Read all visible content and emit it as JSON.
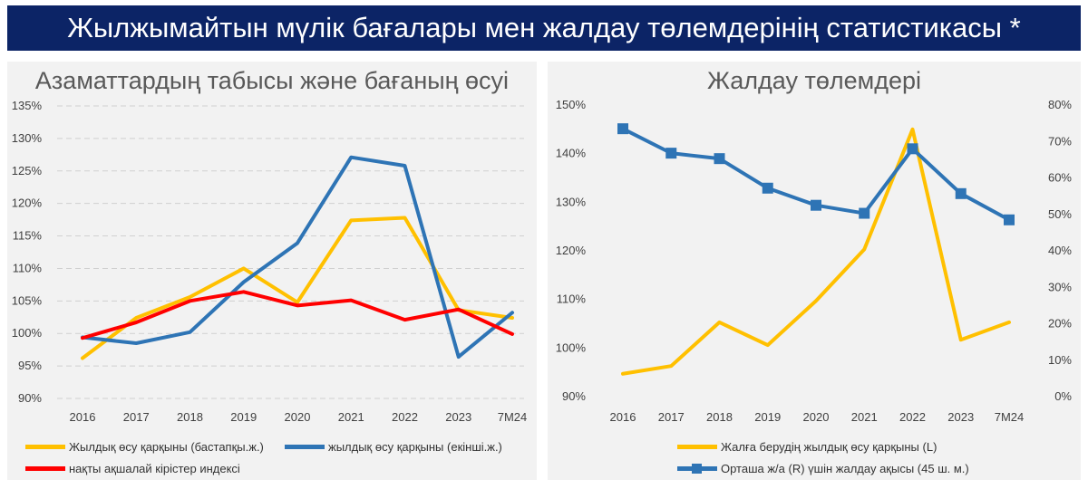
{
  "header": {
    "title": "Жылжымайтын мүлік бағалары мен жалдау төлемдерінің статистикасы *"
  },
  "colors": {
    "banner": "#0c2466",
    "yellow": "#ffc000",
    "blue": "#2e74b5",
    "red": "#ff0000"
  },
  "chart_data": [
    {
      "type": "line",
      "title": "Азаматтардың  табысы және бағаның өсуі",
      "categories": [
        "2016",
        "2017",
        "2018",
        "2019",
        "2020",
        "2021",
        "2022",
        "2023",
        "7M24"
      ],
      "y_ticks": [
        "90%",
        "95%",
        "100%",
        "105%",
        "110%",
        "115%",
        "120%",
        "125%",
        "130%",
        "135%"
      ],
      "ylim": [
        90,
        135
      ],
      "grid": true,
      "legend_position": "bottom",
      "series": [
        {
          "name": "Жылдық өсу қарқыны (бастапқы.ж.)",
          "color": "#ffc000",
          "values": [
            96.2,
            102.4,
            105.6,
            110.0,
            104.8,
            117.4,
            117.8,
            103.6,
            102.4
          ]
        },
        {
          "name": "жылдық өсу қарқыны (екінші.ж.)",
          "color": "#2e74b5",
          "values": [
            99.4,
            98.5,
            100.2,
            107.9,
            113.9,
            127.1,
            125.8,
            96.4,
            103.2
          ]
        },
        {
          "name": "нақты ақшалай кірістер индексі",
          "color": "#ff0000",
          "values": [
            99.3,
            101.7,
            105.0,
            106.4,
            104.3,
            105.1,
            102.1,
            103.7,
            99.9
          ]
        }
      ]
    },
    {
      "type": "line",
      "title": "Жалдау төлемдері",
      "categories": [
        "2016",
        "2017",
        "2018",
        "2019",
        "2020",
        "2021",
        "2022",
        "2023",
        "7M24"
      ],
      "y_ticks": [
        "90%",
        "100%",
        "110%",
        "120%",
        "130%",
        "140%",
        "150%"
      ],
      "ylim": [
        90,
        150
      ],
      "y2_ticks": [
        "0%",
        "10%",
        "20%",
        "30%",
        "40%",
        "50%",
        "60%",
        "70%",
        "80%"
      ],
      "y2lim": [
        0,
        80
      ],
      "grid": false,
      "legend_position": "bottom",
      "series": [
        {
          "name": "Жалға берудің жылдық өсу қарқыны (L)",
          "axis": "left",
          "color": "#ffc000",
          "values": [
            94.7,
            96.3,
            105.3,
            100.6,
            109.7,
            120.3,
            145.0,
            101.7,
            105.3
          ]
        },
        {
          "name": "Орташа ж/а (R) үшін жалдау ақысы (45 ш. м.)",
          "axis": "right",
          "color": "#2e74b5",
          "marker": "square",
          "values": [
            73.5,
            66.8,
            65.3,
            57.2,
            52.5,
            50.3,
            68.0,
            55.7,
            48.5
          ]
        }
      ]
    }
  ]
}
